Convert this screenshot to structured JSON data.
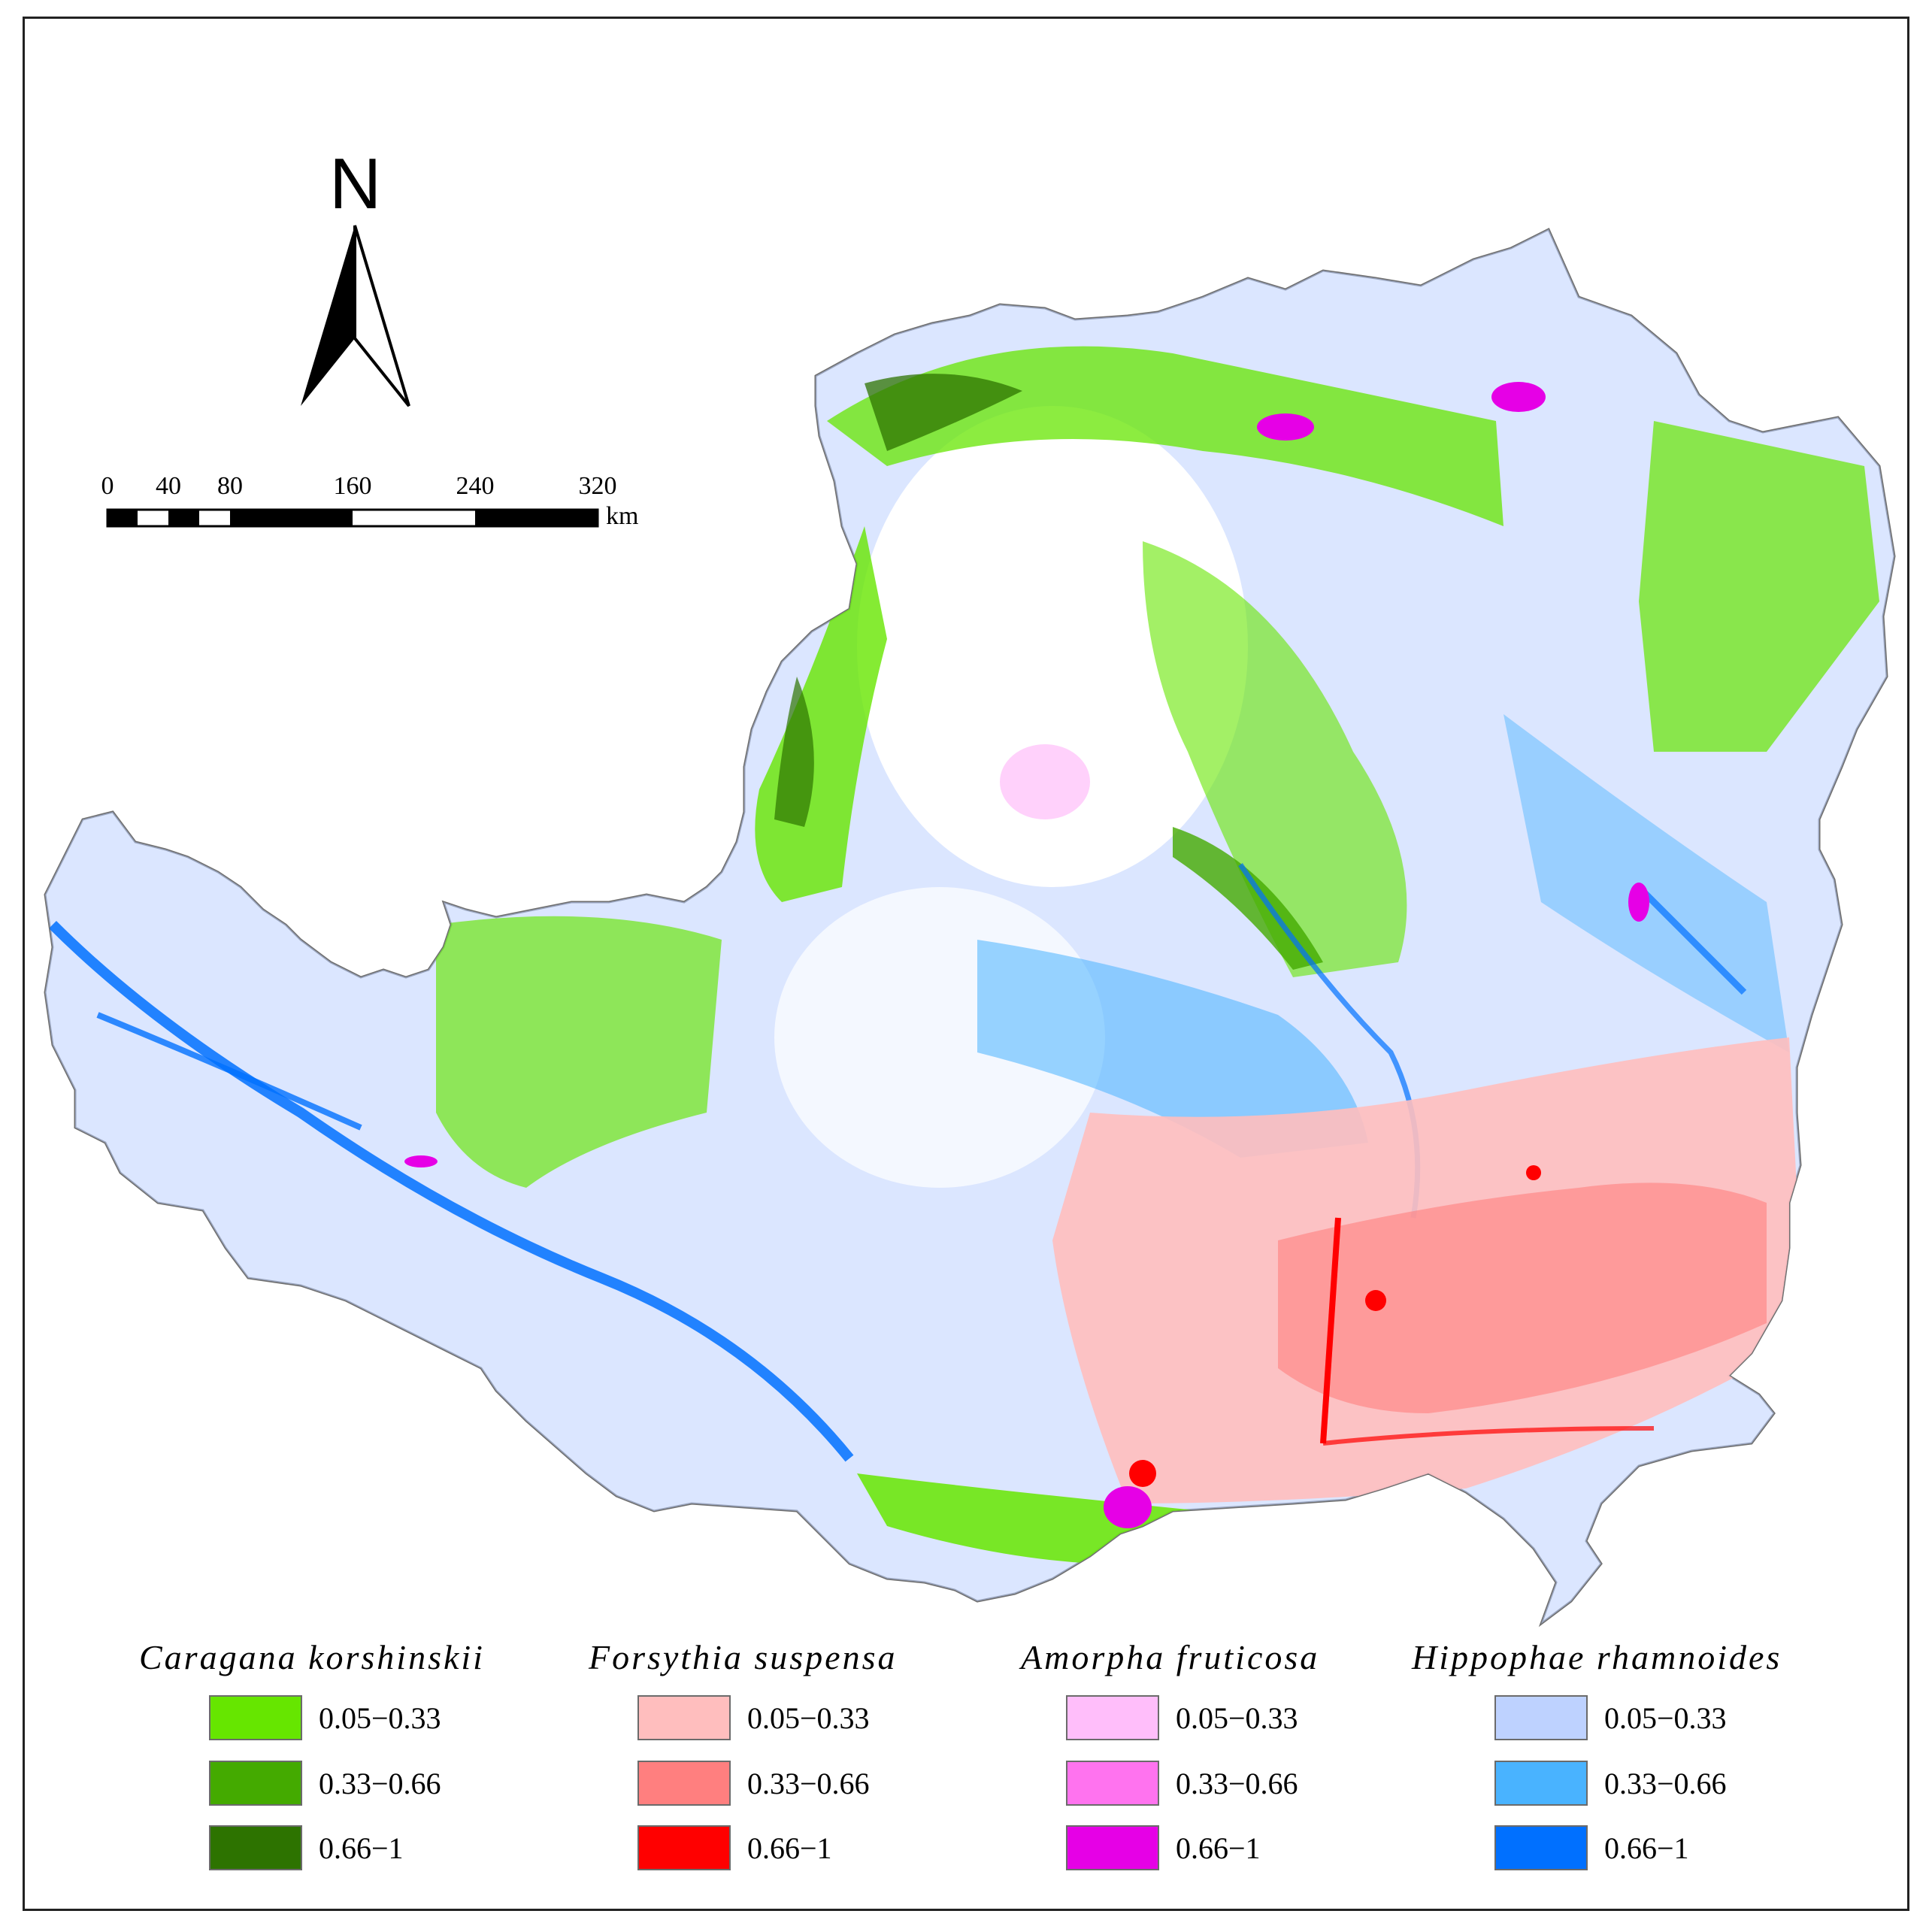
{
  "compass": {
    "letter": "N"
  },
  "scale_bar": {
    "ticks": [
      "0",
      "40",
      "80",
      "160",
      "240",
      "320"
    ],
    "tick_values_km": [
      0,
      40,
      80,
      160,
      240,
      320
    ],
    "unit": "km"
  },
  "legend": {
    "groups": [
      {
        "species": "Caragana korshinskii",
        "classes": [
          {
            "label": "0.05−0.33",
            "color": "#66e600"
          },
          {
            "label": "0.33−0.66",
            "color": "#44aa00"
          },
          {
            "label": "0.66−1",
            "color": "#2d7300"
          }
        ]
      },
      {
        "species": "Forsythia suspensa",
        "classes": [
          {
            "label": "0.05−0.33",
            "color": "#ffbebe"
          },
          {
            "label": "0.33−0.66",
            "color": "#ff7f7f"
          },
          {
            "label": "0.66−1",
            "color": "#ff0000"
          }
        ]
      },
      {
        "species": "Amorpha fruticosa",
        "classes": [
          {
            "label": "0.05−0.33",
            "color": "#ffbefa"
          },
          {
            "label": "0.33−0.66",
            "color": "#ff73ef"
          },
          {
            "label": "0.66−1",
            "color": "#e600e6"
          }
        ]
      },
      {
        "species": "Hippophae rhamnoides",
        "classes": [
          {
            "label": "0.05−0.33",
            "color": "#bed2ff"
          },
          {
            "label": "0.33−0.66",
            "color": "#49b3ff"
          },
          {
            "label": "0.66−1",
            "color": "#0070ff"
          }
        ]
      }
    ]
  }
}
